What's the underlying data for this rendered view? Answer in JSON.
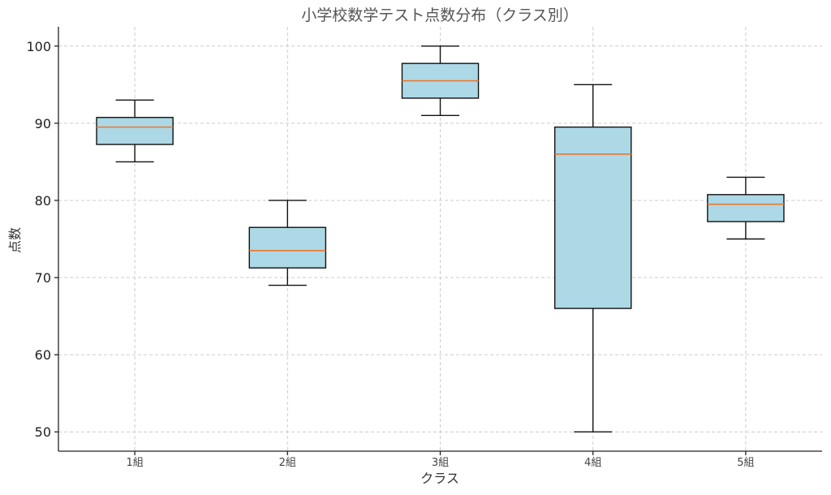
{
  "chart_data": {
    "type": "box",
    "title": "小学校数学テスト点数分布（クラス別）",
    "xlabel": "クラス",
    "ylabel": "点数",
    "categories": [
      "1組",
      "2組",
      "3組",
      "4組",
      "5組"
    ],
    "boxes": [
      {
        "category": "1組",
        "min": 85,
        "q1": 87.25,
        "median": 89.5,
        "q3": 90.75,
        "max": 93
      },
      {
        "category": "2組",
        "min": 69,
        "q1": 71.25,
        "median": 73.5,
        "q3": 76.5,
        "max": 80
      },
      {
        "category": "3組",
        "min": 91,
        "q1": 93.25,
        "median": 95.5,
        "q3": 97.75,
        "max": 100
      },
      {
        "category": "4組",
        "min": 50,
        "q1": 66,
        "median": 86,
        "q3": 89.5,
        "max": 95
      },
      {
        "category": "5組",
        "min": 75,
        "q1": 77.25,
        "median": 79.5,
        "q3": 80.75,
        "max": 83
      }
    ],
    "ylim": [
      47.5,
      102.5
    ],
    "yticks": [
      50,
      60,
      70,
      80,
      90,
      100
    ],
    "grid": true,
    "colors": {
      "box_fill": "#add8e6",
      "median": "#e8772e",
      "edge": "#111111",
      "grid": "#cccccc"
    }
  }
}
